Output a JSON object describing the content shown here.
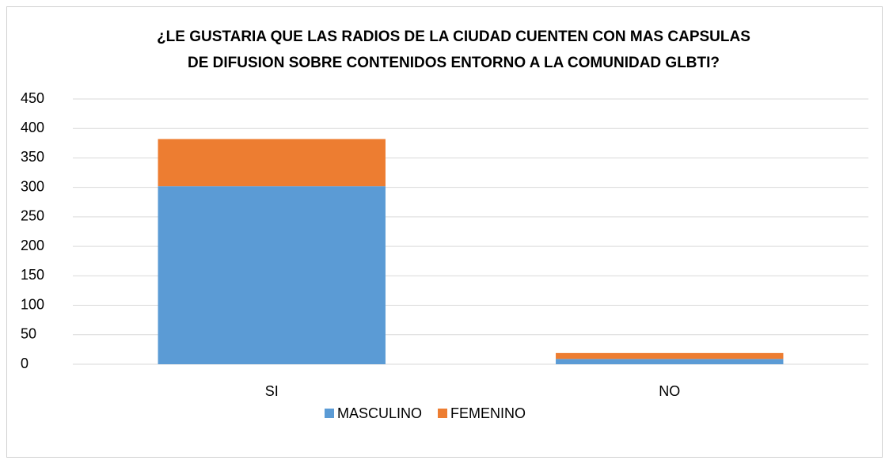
{
  "chart_data": {
    "type": "stacked_bar",
    "title": [
      "¿LE GUSTARIA QUE LAS RADIOS DE LA CIUDAD CUENTEN CON MAS CAPSULAS",
      "DE DIFUSION SOBRE CONTENIDOS ENTORNO A LA COMUNIDAD GLBTI?"
    ],
    "categories": [
      "SI",
      "NO"
    ],
    "series": [
      {
        "name": "MASCULINO",
        "color": "#5b9bd5",
        "values": [
          302,
          9
        ]
      },
      {
        "name": "FEMENINO",
        "color": "#ed7d31",
        "values": [
          80,
          10
        ]
      }
    ],
    "ylim": [
      0,
      450
    ],
    "yticks": [
      0,
      50,
      100,
      150,
      200,
      250,
      300,
      350,
      400,
      450
    ],
    "grid": true,
    "legend": "bottom"
  }
}
